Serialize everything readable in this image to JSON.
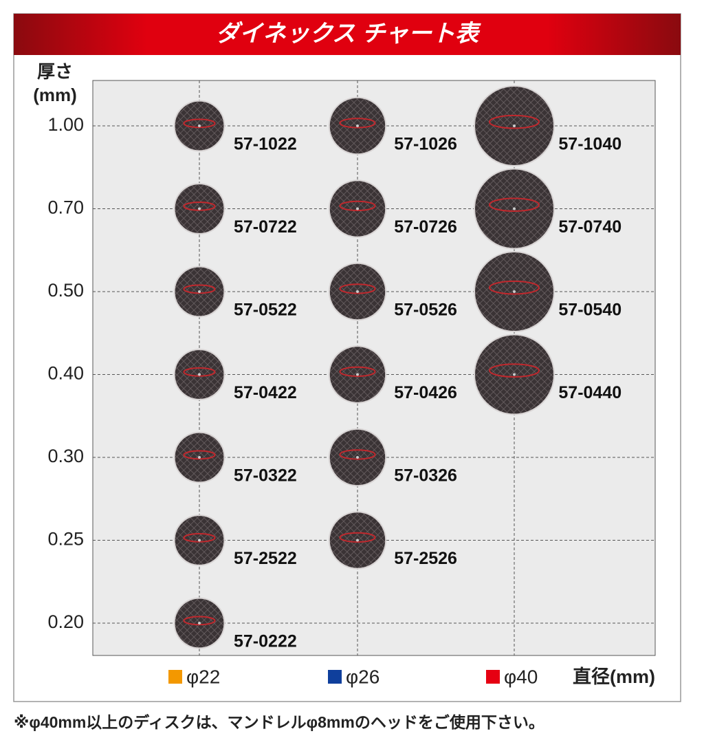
{
  "chart_data": {
    "type": "bubble",
    "title": "ダイネックス チャート表",
    "y_label": [
      "厚さ",
      "(mm)"
    ],
    "x_label": "直径(mm)",
    "y_categories": [
      "1.00",
      "0.70",
      "0.50",
      "0.40",
      "0.30",
      "0.25",
      "0.20"
    ],
    "series": [
      {
        "name": "φ22",
        "color": "#f39800",
        "size": 22,
        "codes": [
          "57-1022",
          "57-0722",
          "57-0522",
          "57-0422",
          "57-0322",
          "57-2522",
          "57-0222"
        ]
      },
      {
        "name": "φ26",
        "color": "#0f3f9c",
        "size": 26,
        "codes": [
          "57-1026",
          "57-0726",
          "57-0526",
          "57-0426",
          "57-0326",
          "57-2526",
          null
        ]
      },
      {
        "name": "φ40",
        "color": "#e60012",
        "size": 40,
        "codes": [
          "57-1040",
          "57-0740",
          "57-0540",
          "57-0440",
          null,
          null,
          null
        ]
      }
    ],
    "grid": true,
    "note": "※φ40mm以上のディスクは、マンドレルφ8mmのヘッドをご使用下さい。"
  }
}
